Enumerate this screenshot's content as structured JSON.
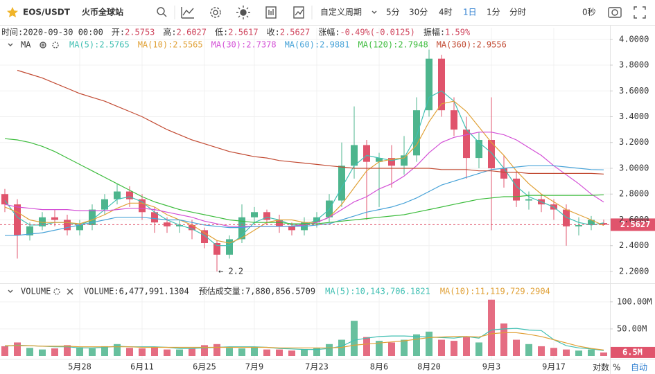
{
  "toolbar": {
    "pair": "EOS/USDT",
    "exchange": "火币全球站",
    "custom_period": "自定义周期",
    "periods": [
      "5分",
      "30分",
      "4时",
      "1日",
      "1分",
      "分时"
    ],
    "active_period": 3,
    "countdown": "0秒"
  },
  "info": [
    {
      "label": "时间:",
      "value": "2020-09-30 00:00"
    },
    {
      "label": "开:",
      "value": "2.5753"
    },
    {
      "label": "高:",
      "value": "2.6027"
    },
    {
      "label": "低:",
      "value": "2.5617"
    },
    {
      "label": "收:",
      "value": "2.5627"
    },
    {
      "label": "涨幅:",
      "value": "-0.49%(-0.0125)"
    },
    {
      "label": "振幅:",
      "value": "1.59%"
    }
  ],
  "footer": {
    "log": "对数",
    "percent": "%",
    "auto": "自动"
  },
  "chart_data": [
    {
      "type": "candlestick",
      "indicator": "MA",
      "up_color": "#4db58d",
      "down_color": "#e0546c",
      "grid": true,
      "open": [
        2.8,
        2.72,
        2.48,
        2.55,
        2.62,
        2.6,
        2.52,
        2.56,
        2.68,
        2.76,
        2.82,
        2.76,
        2.66,
        2.58,
        2.55,
        2.56,
        2.52,
        2.42,
        2.33,
        2.45,
        2.62,
        2.66,
        2.6,
        2.55,
        2.52,
        2.58,
        2.62,
        2.75,
        3.02,
        3.18,
        3.05,
        3.08,
        3.02,
        3.1,
        3.45,
        3.85,
        3.45,
        3.3,
        3.08,
        3.22,
        3.0,
        2.92,
        2.75,
        2.76,
        2.72,
        2.68,
        2.55,
        2.56,
        2.5753
      ],
      "high": [
        2.84,
        2.76,
        2.58,
        2.66,
        2.68,
        2.64,
        2.6,
        2.72,
        2.8,
        2.88,
        2.86,
        2.8,
        2.7,
        2.62,
        2.6,
        2.6,
        2.54,
        2.44,
        2.48,
        2.72,
        2.7,
        2.68,
        2.64,
        2.58,
        2.62,
        2.66,
        2.8,
        3.2,
        3.48,
        3.22,
        3.12,
        3.18,
        3.25,
        3.55,
        3.92,
        3.88,
        3.55,
        3.4,
        3.28,
        3.55,
        3.1,
        2.98,
        2.82,
        2.8,
        2.76,
        2.72,
        2.62,
        2.63,
        2.6027
      ],
      "low": [
        2.66,
        2.3,
        2.44,
        2.52,
        2.55,
        2.48,
        2.48,
        2.52,
        2.64,
        2.72,
        2.7,
        2.6,
        2.5,
        2.5,
        2.5,
        2.45,
        2.38,
        2.2,
        2.3,
        2.42,
        2.56,
        2.56,
        2.5,
        2.48,
        2.48,
        2.54,
        2.58,
        2.7,
        2.92,
        2.6,
        2.7,
        2.85,
        2.95,
        3.05,
        3.4,
        3.4,
        3.25,
        2.92,
        3.0,
        2.52,
        2.85,
        2.7,
        2.68,
        2.66,
        2.6,
        2.4,
        2.48,
        2.52,
        2.5617
      ],
      "close": [
        2.72,
        2.48,
        2.55,
        2.62,
        2.6,
        2.52,
        2.56,
        2.68,
        2.76,
        2.82,
        2.76,
        2.66,
        2.58,
        2.55,
        2.56,
        2.52,
        2.42,
        2.33,
        2.45,
        2.62,
        2.66,
        2.6,
        2.55,
        2.52,
        2.58,
        2.62,
        2.75,
        3.02,
        3.18,
        3.05,
        3.08,
        3.02,
        3.1,
        3.45,
        3.85,
        3.45,
        3.3,
        3.08,
        3.22,
        3.0,
        2.92,
        2.75,
        2.76,
        2.72,
        2.68,
        2.55,
        2.56,
        2.6,
        2.5627
      ],
      "series": [
        {
          "name": "MA(5)",
          "legend_value": ":2.5765",
          "color": "#3fbfb2",
          "values": [
            2.75,
            2.62,
            2.56,
            2.56,
            2.58,
            2.58,
            2.56,
            2.6,
            2.68,
            2.76,
            2.78,
            2.74,
            2.66,
            2.6,
            2.56,
            2.53,
            2.48,
            2.4,
            2.4,
            2.48,
            2.58,
            2.62,
            2.6,
            2.56,
            2.56,
            2.6,
            2.68,
            2.85,
            3.02,
            3.1,
            3.08,
            3.06,
            3.08,
            3.25,
            3.55,
            3.6,
            3.52,
            3.3,
            3.2,
            3.12,
            3.0,
            2.86,
            2.78,
            2.74,
            2.7,
            2.62,
            2.58,
            2.56,
            2.5765
          ]
        },
        {
          "name": "MA(10)",
          "legend_value": ":2.5565",
          "color": "#e0a035",
          "values": [
            2.7,
            2.66,
            2.6,
            2.58,
            2.58,
            2.58,
            2.57,
            2.6,
            2.64,
            2.69,
            2.73,
            2.73,
            2.7,
            2.64,
            2.6,
            2.56,
            2.5,
            2.44,
            2.42,
            2.46,
            2.52,
            2.58,
            2.6,
            2.6,
            2.58,
            2.58,
            2.62,
            2.72,
            2.85,
            2.98,
            3.05,
            3.07,
            3.08,
            3.18,
            3.36,
            3.5,
            3.52,
            3.44,
            3.32,
            3.2,
            3.1,
            2.98,
            2.88,
            2.8,
            2.74,
            2.68,
            2.64,
            2.6,
            2.5565
          ]
        },
        {
          "name": "MA(30)",
          "legend_value": ":2.7378",
          "color": "#d34fd6",
          "values": [
            2.72,
            2.7,
            2.69,
            2.68,
            2.68,
            2.68,
            2.67,
            2.67,
            2.67,
            2.68,
            2.69,
            2.69,
            2.68,
            2.66,
            2.64,
            2.62,
            2.59,
            2.57,
            2.55,
            2.55,
            2.55,
            2.55,
            2.55,
            2.55,
            2.56,
            2.58,
            2.62,
            2.68,
            2.74,
            2.78,
            2.84,
            2.88,
            2.94,
            3.02,
            3.12,
            3.2,
            3.24,
            3.26,
            3.28,
            3.28,
            3.26,
            3.22,
            3.16,
            3.1,
            3.02,
            2.95,
            2.88,
            2.8,
            2.7378
          ]
        },
        {
          "name": "MA(60)",
          "legend_value": ":2.9881",
          "color": "#48a3d8",
          "values": [
            2.48,
            2.48,
            2.49,
            2.5,
            2.52,
            2.54,
            2.56,
            2.58,
            2.6,
            2.62,
            2.62,
            2.62,
            2.61,
            2.6,
            2.6,
            2.58,
            2.56,
            2.55,
            2.54,
            2.54,
            2.55,
            2.55,
            2.55,
            2.55,
            2.55,
            2.56,
            2.57,
            2.6,
            2.63,
            2.66,
            2.68,
            2.7,
            2.73,
            2.77,
            2.82,
            2.87,
            2.9,
            2.93,
            2.96,
            2.99,
            3.0,
            3.01,
            3.02,
            3.02,
            3.02,
            3.01,
            3.0,
            2.99,
            2.9881
          ]
        },
        {
          "name": "MA(120)",
          "legend_value": ":2.7948",
          "color": "#3cbc3c",
          "values": [
            3.23,
            3.22,
            3.2,
            3.17,
            3.13,
            3.08,
            3.03,
            2.98,
            2.93,
            2.88,
            2.83,
            2.78,
            2.74,
            2.71,
            2.68,
            2.66,
            2.64,
            2.62,
            2.6,
            2.59,
            2.58,
            2.58,
            2.58,
            2.57,
            2.57,
            2.57,
            2.58,
            2.59,
            2.6,
            2.61,
            2.62,
            2.63,
            2.64,
            2.66,
            2.68,
            2.7,
            2.72,
            2.74,
            2.76,
            2.77,
            2.78,
            2.78,
            2.79,
            2.79,
            2.79,
            2.79,
            2.79,
            2.79,
            2.7948
          ]
        },
        {
          "name": "MA(360)",
          "legend_value": ":2.9556",
          "color": "#c24a32",
          "values": [
            null,
            3.76,
            3.73,
            3.7,
            3.66,
            3.62,
            3.58,
            3.55,
            3.52,
            3.48,
            3.44,
            3.4,
            3.35,
            3.3,
            3.26,
            3.22,
            3.19,
            3.16,
            3.13,
            3.11,
            3.09,
            3.08,
            3.06,
            3.05,
            3.04,
            3.03,
            3.02,
            3.01,
            3.0,
            3.0,
            3.0,
            3.0,
            3.0,
            3.0,
            3.0,
            2.99,
            2.99,
            2.99,
            2.98,
            2.98,
            2.97,
            2.97,
            2.96,
            2.96,
            2.96,
            2.96,
            2.96,
            2.96,
            2.9556
          ]
        }
      ],
      "ylim": [
        2.13,
        4.09
      ],
      "yticks": [
        {
          "value": 2.2,
          "label": "2.2000"
        },
        {
          "value": 2.4,
          "label": "2.4000"
        },
        {
          "value": 2.6,
          "label": "2.6000"
        },
        {
          "value": 2.8,
          "label": "2.8000"
        },
        {
          "value": 3.0,
          "label": "3.0000"
        },
        {
          "value": 3.2,
          "label": "3.2000"
        },
        {
          "value": 3.4,
          "label": "3.4000"
        },
        {
          "value": 3.6,
          "label": "3.6000"
        },
        {
          "value": 3.8,
          "label": "3.8000"
        },
        {
          "value": 4.0,
          "label": "4.0000"
        }
      ],
      "current_price": {
        "value": 2.5627,
        "label": "2.5627"
      },
      "annotation": {
        "text": "← 2.2",
        "index": 17
      }
    },
    {
      "type": "bar",
      "indicator": "VOLUME",
      "volume_text": "VOLUME:6,477,991.1304",
      "estimate_text": "预估成交量:7,880,856.5709",
      "categories": [
        null,
        null,
        null,
        null,
        null,
        null,
        "5月28",
        null,
        null,
        null,
        null,
        "6月11",
        null,
        null,
        null,
        null,
        "6月25",
        null,
        null,
        null,
        "7月9",
        null,
        null,
        null,
        null,
        "7月23",
        null,
        null,
        null,
        null,
        "8月6",
        null,
        null,
        null,
        "8月20",
        null,
        null,
        null,
        null,
        "9月3",
        null,
        null,
        null,
        null,
        "9月17",
        null,
        null,
        null,
        null
      ],
      "values": [
        18,
        25,
        15,
        12,
        14,
        20,
        16,
        14,
        18,
        22,
        15,
        14,
        16,
        12,
        12,
        14,
        20,
        22,
        15,
        14,
        16,
        12,
        12,
        10,
        12,
        15,
        22,
        30,
        65,
        35,
        28,
        25,
        30,
        40,
        45,
        30,
        28,
        35,
        25,
        104,
        60,
        30,
        22,
        18,
        15,
        12,
        10,
        12,
        6.5
      ],
      "value_labels": [
        null,
        null,
        null,
        null,
        null,
        null,
        null,
        null,
        null,
        null,
        null,
        null,
        null,
        null,
        null,
        null,
        null,
        null,
        null,
        null,
        null,
        null,
        null,
        null,
        null,
        null,
        null,
        null,
        null,
        null,
        null,
        null,
        null,
        null,
        null,
        null,
        null,
        null,
        null,
        null,
        null,
        null,
        null,
        null,
        null,
        null,
        null,
        null,
        "6.5M"
      ],
      "series": [
        {
          "name": "MA(5)",
          "legend_value": ":10,143,706.1821",
          "color": "#3fbfb2",
          "values": [
            18,
            20,
            19,
            18,
            17,
            17,
            15,
            15,
            16,
            18,
            17,
            17,
            17,
            16,
            14,
            14,
            15,
            16,
            17,
            17,
            17,
            16,
            14,
            13,
            12,
            12,
            14,
            18,
            29,
            33,
            36,
            37,
            37,
            36,
            35,
            34,
            33,
            36,
            33,
            48,
            50,
            51,
            48,
            47,
            30,
            19,
            15,
            13,
            10.14
          ]
        },
        {
          "name": "MA(10)",
          "legend_value": ":11,119,729.2904",
          "color": "#e0a035",
          "values": [
            19,
            19,
            19,
            18,
            18,
            18,
            17,
            17,
            17,
            17,
            17,
            16,
            16,
            16,
            16,
            16,
            16,
            16,
            16,
            16,
            16,
            16,
            15,
            15,
            15,
            15,
            15,
            16,
            20,
            22,
            24,
            26,
            28,
            31,
            34,
            35,
            36,
            36,
            35,
            41,
            43,
            43,
            40,
            36,
            30,
            24,
            18,
            14,
            11.12
          ]
        }
      ],
      "ylim": [
        0,
        110
      ],
      "yticks": [
        {
          "value": 50,
          "label": "50.00M"
        },
        {
          "value": 100,
          "label": "100.00M"
        }
      ]
    }
  ]
}
